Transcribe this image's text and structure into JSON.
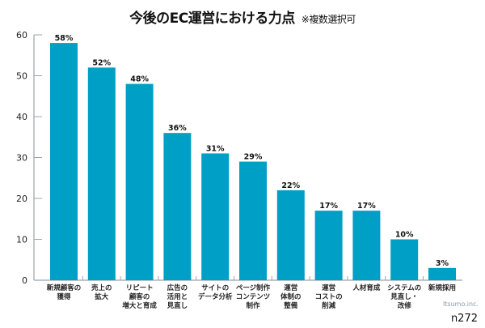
{
  "title": "今後のEC運営における力点",
  "note": "※複数選択可",
  "credit": "Itsumo.inc.",
  "code": "n272",
  "chart_data": {
    "type": "bar",
    "title": "今後のEC運営における力点",
    "subtitle": "※複数選択可",
    "categories": [
      [
        "新規顧客の",
        "獲得"
      ],
      [
        "売上の",
        "拡大"
      ],
      [
        "リピート",
        "顧客の",
        "増大と育成"
      ],
      [
        "広告の",
        "活用と",
        "見直し"
      ],
      [
        "サイトの",
        "データ分析"
      ],
      [
        "ページ制作",
        "コンテンツ",
        "制作"
      ],
      [
        "運営",
        "体制の",
        "整備"
      ],
      [
        "運営",
        "コストの",
        "削減"
      ],
      [
        "人材育成"
      ],
      [
        "システムの",
        "見直し・",
        "改修"
      ],
      [
        "新規採用"
      ]
    ],
    "values": [
      58,
      52,
      48,
      36,
      31,
      29,
      22,
      17,
      17,
      10,
      3
    ],
    "data_labels": [
      "58%",
      "52%",
      "48%",
      "36%",
      "31%",
      "29%",
      "22%",
      "17%",
      "17%",
      "10%",
      "3%"
    ],
    "ylim": [
      0,
      60
    ],
    "yticks": [
      "0",
      "10",
      "20",
      "30",
      "40",
      "50",
      "60"
    ],
    "grid": false,
    "bar_color": "#009fc6"
  }
}
